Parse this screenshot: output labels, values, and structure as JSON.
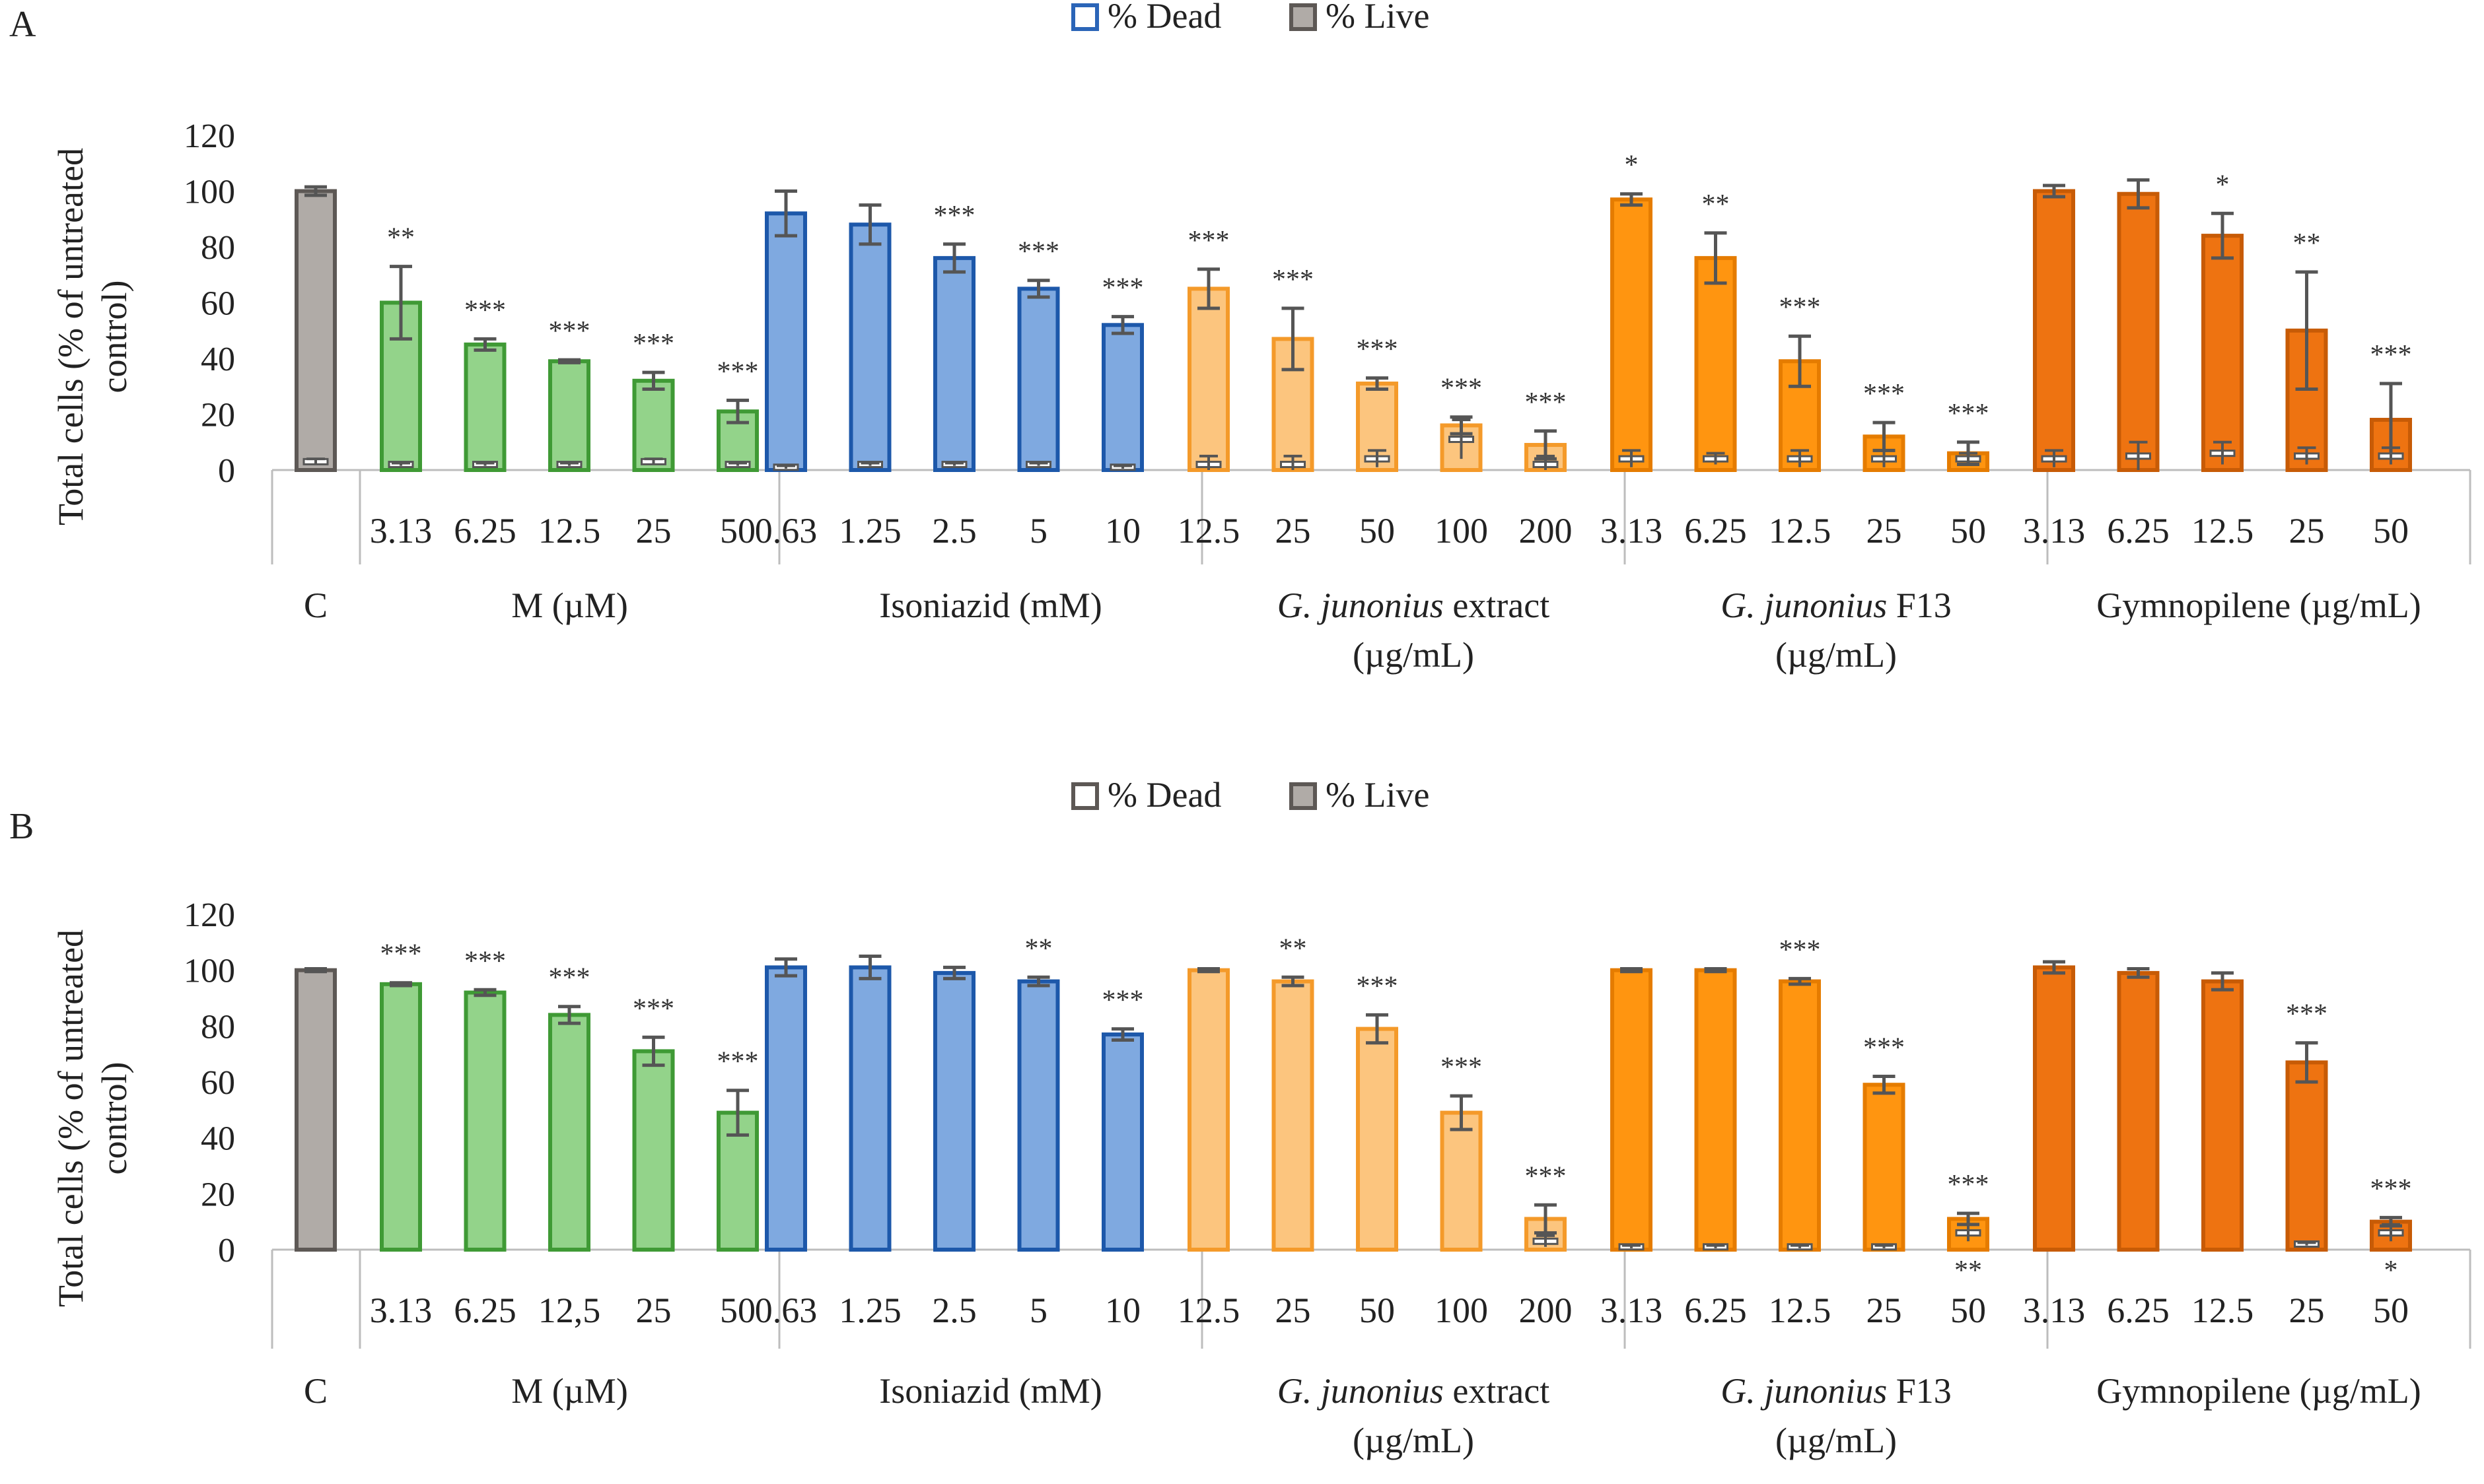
{
  "chart_data": [
    {
      "type": "bar",
      "panel": "A",
      "legend": [
        {
          "label": "% Dead",
          "fill": "#ffffff",
          "stroke": "#2b65b8"
        },
        {
          "label": "% Live",
          "fill": "#b0aba7",
          "stroke": "#5d5855"
        }
      ],
      "ylabel_line1": "Total cells (% of untreated",
      "ylabel_line2": "control)",
      "ylim": [
        0,
        120
      ],
      "yticks": [
        "0",
        "20",
        "40",
        "60",
        "80",
        "100",
        "120"
      ],
      "control": {
        "label": "C",
        "live": 100,
        "live_err": 1.5,
        "dead": 3,
        "dead_err": 1,
        "stars": "",
        "color": "#b0aba7",
        "edge": "#5d5855"
      },
      "groups": [
        {
          "name": "M (µM)",
          "name_italic": "",
          "name_rest": "M (µM)",
          "line2": "",
          "color": "#93d38a",
          "edge": "#3f9a35",
          "categories": [
            "3.13",
            "6.25",
            "12.5",
            "25",
            "50"
          ],
          "live": [
            60,
            45,
            39,
            32,
            21
          ],
          "live_err": [
            13,
            2,
            0.5,
            3,
            4
          ],
          "dead": [
            2,
            2,
            2,
            3,
            2
          ],
          "dead_err": [
            0.5,
            0.5,
            0.5,
            1,
            0.5
          ],
          "stars": [
            "**",
            "***",
            "***",
            "***",
            "***"
          ]
        },
        {
          "name": "Isoniazid (mM)",
          "name_italic": "",
          "name_rest": "Isoniazid (mM)",
          "line2": "",
          "color": "#7fa9e0",
          "edge": "#1d58aa",
          "categories": [
            "0.63",
            "1.25",
            "2.5",
            "5",
            "10"
          ],
          "live": [
            92,
            88,
            76,
            65,
            52
          ],
          "live_err": [
            8,
            7,
            5,
            3,
            3
          ],
          "dead": [
            1,
            2,
            2,
            2,
            1
          ],
          "dead_err": [
            0.5,
            0.5,
            0.5,
            0.5,
            0.5
          ],
          "stars": [
            "",
            "",
            "***",
            "***",
            "***"
          ]
        },
        {
          "name": "G. junonius extract",
          "name_italic": "G. junonius",
          "name_rest": " extract",
          "line2": "(µg/mL)",
          "color": "#fcc57e",
          "edge": "#f49a2a",
          "categories": [
            "12.5",
            "25",
            "50",
            "100",
            "200"
          ],
          "live": [
            65,
            47,
            31,
            16,
            9
          ],
          "live_err": [
            7,
            11,
            2,
            3,
            5
          ],
          "dead": [
            2,
            2,
            4,
            11,
            2
          ],
          "dead_err": [
            3,
            3,
            3,
            7,
            3
          ],
          "stars": [
            "***",
            "***",
            "***",
            "***",
            "***"
          ]
        },
        {
          "name": "G. junonius F13",
          "name_italic": "G. junonius",
          "name_rest": " F13",
          "line2": "(µg/mL)",
          "color": "#ff9510",
          "edge": "#e57c00",
          "categories": [
            "3.13",
            "6.25",
            "12.5",
            "25",
            "50"
          ],
          "live": [
            97,
            76,
            39,
            12,
            6
          ],
          "live_err": [
            2,
            9,
            9,
            5,
            4
          ],
          "dead": [
            4,
            4,
            4,
            4,
            4
          ],
          "dead_err": [
            3,
            2,
            3,
            3,
            2
          ],
          "stars": [
            "*",
            "**",
            "***",
            "***",
            "***"
          ]
        },
        {
          "name": "Gymnopilene (µg/mL)",
          "name_italic": "",
          "name_rest": "Gymnopilene (µg/mL)",
          "line2": "",
          "color": "#ee7311",
          "edge": "#c75b06",
          "categories": [
            "3.13",
            "6.25",
            "12.5",
            "25",
            "50"
          ],
          "live": [
            100,
            99,
            84,
            50,
            18
          ],
          "live_err": [
            2,
            5,
            8,
            21,
            13
          ],
          "dead": [
            4,
            5,
            6,
            5,
            5
          ],
          "dead_err": [
            3,
            5,
            4,
            3,
            3
          ],
          "stars": [
            "",
            "",
            "*",
            "**",
            "***"
          ]
        }
      ],
      "bottom_stars": [
        "",
        "",
        "",
        "",
        "",
        "",
        "",
        "",
        "",
        "",
        "",
        "",
        "",
        "",
        "",
        "",
        "",
        "",
        "",
        "",
        "",
        "",
        "",
        "",
        "",
        ""
      ]
    },
    {
      "type": "bar",
      "panel": "B",
      "legend": [
        {
          "label": "% Dead",
          "fill": "#ffffff",
          "stroke": "#5d5855"
        },
        {
          "label": "% Live",
          "fill": "#b0aba7",
          "stroke": "#5d5855"
        }
      ],
      "ylabel_line1": "Total cells (% of untreated",
      "ylabel_line2": "control)",
      "ylim": [
        0,
        120
      ],
      "yticks": [
        "0",
        "20",
        "40",
        "60",
        "80",
        "100",
        "120"
      ],
      "control": {
        "label": "C",
        "live": 100,
        "live_err": 0.5,
        "dead": 0,
        "dead_err": 0,
        "stars": "",
        "color": "#b0aba7",
        "edge": "#5d5855"
      },
      "groups": [
        {
          "name": "M (µM)",
          "name_italic": "",
          "name_rest": "M (µM)",
          "line2": "",
          "color": "#93d38a",
          "edge": "#3f9a35",
          "categories": [
            "3.13",
            "6.25",
            "12,5",
            "25",
            "50"
          ],
          "live": [
            95,
            92,
            84,
            71,
            49
          ],
          "live_err": [
            0.5,
            1,
            3,
            5,
            8
          ],
          "dead": [
            0,
            0,
            0,
            0,
            0
          ],
          "dead_err": [
            0,
            0,
            0,
            0,
            0
          ],
          "stars": [
            "***",
            "***",
            "***",
            "***",
            "***"
          ]
        },
        {
          "name": "Isoniazid (mM)",
          "name_italic": "",
          "name_rest": "Isoniazid (mM)",
          "line2": "",
          "color": "#7fa9e0",
          "edge": "#1d58aa",
          "categories": [
            "0.63",
            "1.25",
            "2.5",
            "5",
            "10"
          ],
          "live": [
            101,
            101,
            99,
            96,
            77
          ],
          "live_err": [
            3,
            4,
            2,
            1.5,
            2
          ],
          "dead": [
            0,
            0,
            0,
            0,
            0
          ],
          "dead_err": [
            0,
            0,
            0,
            0,
            0
          ],
          "stars": [
            "",
            "",
            "",
            "**",
            "***"
          ]
        },
        {
          "name": "G. junonius extract",
          "name_italic": "G. junonius",
          "name_rest": " extract",
          "line2": "(µg/mL)",
          "color": "#fcc57e",
          "edge": "#f49a2a",
          "categories": [
            "12.5",
            "25",
            "50",
            "100",
            "200"
          ],
          "live": [
            100,
            96,
            79,
            49,
            11
          ],
          "live_err": [
            0.5,
            1.5,
            5,
            6,
            5
          ],
          "dead": [
            0,
            0,
            0,
            0,
            3
          ],
          "dead_err": [
            0,
            0,
            0,
            0,
            2
          ],
          "stars": [
            "",
            "**",
            "***",
            "***",
            "***"
          ]
        },
        {
          "name": "G. junonius F13",
          "name_italic": "G. junonius",
          "name_rest": " F13",
          "line2": "(µg/mL)",
          "color": "#ff9510",
          "edge": "#e57c00",
          "categories": [
            "3.13",
            "6.25",
            "12.5",
            "25",
            "50"
          ],
          "live": [
            100,
            100,
            96,
            59,
            11
          ],
          "live_err": [
            0.5,
            0.5,
            1,
            3,
            2
          ],
          "dead": [
            1,
            1,
            1,
            1,
            6
          ],
          "dead_err": [
            0.5,
            0.5,
            0.5,
            0.5,
            3
          ],
          "stars": [
            "",
            "",
            "***",
            "***",
            "***"
          ]
        },
        {
          "name": "Gymnopilene (µg/mL)",
          "name_italic": "",
          "name_rest": "Gymnopilene (µg/mL)",
          "line2": "",
          "color": "#ee7311",
          "edge": "#c75b06",
          "categories": [
            "3.13",
            "6.25",
            "12.5",
            "25",
            "50"
          ],
          "live": [
            101,
            99,
            96,
            67,
            10
          ],
          "live_err": [
            2,
            1.5,
            3,
            7,
            1.5
          ],
          "dead": [
            0,
            0,
            0,
            2,
            6
          ],
          "dead_err": [
            0,
            0,
            0,
            0.5,
            3
          ],
          "stars": [
            "",
            "",
            "",
            "***",
            "***"
          ]
        }
      ],
      "bottom_stars": [
        "",
        "",
        "",
        "",
        "",
        "",
        "",
        "",
        "",
        "",
        "",
        "",
        "",
        "",
        "",
        "",
        "",
        "",
        "",
        "",
        "**",
        "",
        "",
        "",
        "",
        "*"
      ]
    }
  ]
}
